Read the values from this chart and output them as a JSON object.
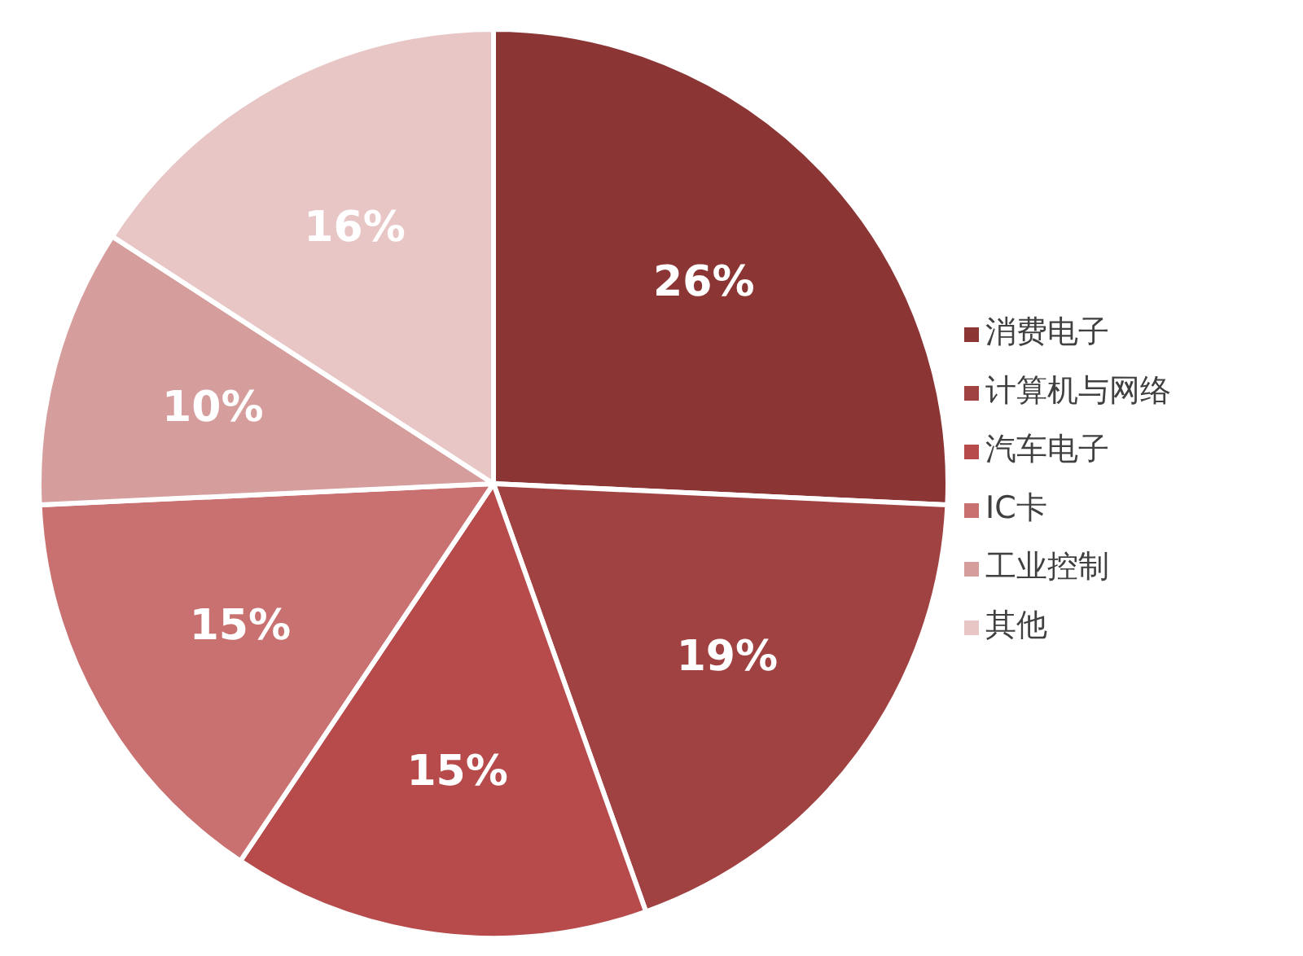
{
  "chart_data": {
    "type": "pie",
    "categories": [
      "消费电子",
      "计算机与网络",
      "汽车电子",
      "IC卡",
      "工业控制",
      "其他"
    ],
    "values": [
      26,
      19,
      15,
      15,
      10,
      16
    ],
    "colors": [
      "#8b3535",
      "#a14242",
      "#b74a4a",
      "#c97171",
      "#d69d9d",
      "#e8c6c6"
    ],
    "value_labels": [
      "26%",
      "19%",
      "15%",
      "15%",
      "10%",
      "16%"
    ],
    "legend": "right"
  }
}
